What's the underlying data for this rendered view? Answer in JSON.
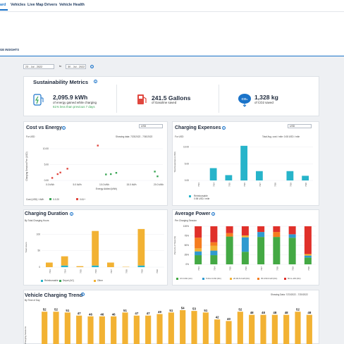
{
  "nav": {
    "items": [
      "ard",
      "Vehicles",
      "Live Map",
      "Drivers",
      "Vehicle Health"
    ]
  },
  "tab": {
    "label": "GE INSIGHTS"
  },
  "date_range": {
    "from": "23 - Jul - 2022",
    "sep": "to",
    "to": "30 - Jul - 2022"
  },
  "sustainability": {
    "title": "Sustainability Metrics",
    "energy_value": "2,095.9 kWh",
    "energy_label": "of energy gained while charging",
    "energy_compare": "61% less than previous 7 days",
    "gas_value": "241.5 Gallons",
    "gas_label": "of Gasoline saved",
    "co2_value": "1,328 kg",
    "co2_label": "of CO2 saved",
    "co2_icon_text": "CO₂"
  },
  "cost_energy": {
    "title": "Cost vs Energy",
    "currency": "USD",
    "for": "For USD",
    "showing": "Showing data: 7/23/2022 - 7/30/2022",
    "legend_title": "Cost (USD) / kWh",
    "legend_a": "0-0.20",
    "legend_b": "0.61+"
  },
  "charging_expenses": {
    "title": "Charging Expenses",
    "currency": "USD",
    "for": "For USD",
    "total": "Total Avg. cost / mile: 0.08 USD / mile",
    "legend": "Reimbursable",
    "legend_sub": "0.98 USD / mile"
  },
  "charging_duration": {
    "title": "Charging Duration",
    "subtitle": "By Total Charging Hours",
    "legend": [
      "Reimbursable",
      "Depot (AC)",
      "Other"
    ]
  },
  "average_power": {
    "title": "Average Power",
    "subtitle": "Per Charging Session",
    "legend": [
      "0-5.0 kW (AC)",
      "5.00-2.0 kW (DC)",
      "20.00-5.0 kW (DC)",
      "35.0-50.0 kW (DC)",
      "50.0+ kW (DC)"
    ]
  },
  "vehicle_trend": {
    "title": "Vehicle Charging Trend",
    "subtitle": "By Time of Day",
    "showing": "Showing Data: 7/23/2022 - 7/30/2022"
  },
  "chart_data": [
    {
      "type": "scatter",
      "title": "Cost vs Energy",
      "xlabel": "Energy Added (kWh)",
      "ylabel": "Charging Session Fee (USD)",
      "x_ticks": [
        "0.0 kWh",
        "5.0 kWh",
        "10.0 kWh",
        "15.0 kWh",
        "20.0 kWh"
      ],
      "y_ticks": [
        "0.00",
        "5.00",
        "10.00"
      ],
      "xlim": [
        0,
        20
      ],
      "ylim": [
        0,
        12
      ],
      "series": [
        {
          "name": "0-0.20",
          "color": "#3aa655",
          "x": [
            10.3,
            11.2,
            12.2,
            19.3,
            19.8
          ],
          "y": [
            1.9,
            2.0,
            2.4,
            2.8,
            1.3
          ]
        },
        {
          "name": "0.61+",
          "color": "#e0463e",
          "x": [
            0.4,
            1.4,
            1.9,
            3.2,
            8.8
          ],
          "y": [
            0.8,
            2.0,
            2.5,
            3.7,
            11.0
          ]
        }
      ]
    },
    {
      "type": "bar",
      "title": "Charging Expenses",
      "ylabel": "Total Expenses (USD)",
      "categories": [
        "7/23",
        "7/24",
        "7/25",
        "7/26",
        "7/27",
        "7/28",
        "7/29",
        "7/30"
      ],
      "y_ticks": [
        "0.00",
        "5.00",
        "10.00"
      ],
      "ylim": [
        0,
        11
      ],
      "series": [
        {
          "name": "Reimbursable",
          "color": "#27b4ca",
          "values": [
            0,
            3.7,
            1.6,
            10.4,
            2.8,
            0,
            2.8,
            1.4
          ]
        }
      ]
    },
    {
      "type": "bar",
      "title": "Charging Duration",
      "ylabel": "Total Hours",
      "categories": [
        "7/23",
        "7/24",
        "7/25",
        "7/26",
        "7/27",
        "7/28",
        "7/29",
        "7/30"
      ],
      "y_ticks": [
        "0",
        "50",
        "100"
      ],
      "ylim": [
        0,
        120
      ],
      "series": [
        {
          "name": "Reimbursable",
          "color": "#27b4ca",
          "values": [
            0,
            5,
            0,
            5,
            0,
            0,
            5,
            0
          ]
        },
        {
          "name": "Depot (AC)",
          "color": "#3aa655",
          "values": [
            0,
            0,
            0,
            0,
            0,
            0,
            0,
            0
          ]
        },
        {
          "name": "Other",
          "color": "#f2b233",
          "values": [
            14,
            28,
            3,
            105,
            14,
            1,
            111,
            0
          ]
        }
      ]
    },
    {
      "type": "bar",
      "title": "Average Power",
      "ylabel": "Percent of Total (%)",
      "categories": [
        "7/23",
        "7/24",
        "7/25",
        "7/26",
        "7/27",
        "7/28",
        "7/29",
        "7/30"
      ],
      "y_ticks": [
        "0%",
        "25%",
        "50%",
        "75%",
        "100%"
      ],
      "ylim": [
        0,
        100
      ],
      "series": [
        {
          "name": "0-5.0 kW (AC)",
          "color": "#44a944",
          "values": [
            24,
            24,
            73,
            33,
            72,
            72,
            70,
            18
          ]
        },
        {
          "name": "5.00-2.0 kW (DC)",
          "color": "#2e9ad0",
          "values": [
            10,
            12,
            0,
            38,
            13,
            0,
            9,
            5
          ]
        },
        {
          "name": "20.00-5.0 kW (DC)",
          "color": "#f2b233",
          "values": [
            8,
            13,
            0,
            5,
            0,
            0,
            0,
            4
          ]
        },
        {
          "name": "35.0-50.0 kW (DC)",
          "color": "#f57c1f",
          "values": [
            28,
            9,
            9,
            0,
            0,
            13,
            0,
            0
          ]
        },
        {
          "name": "50.0+ kW (DC)",
          "color": "#e0302a",
          "values": [
            30,
            42,
            18,
            24,
            15,
            15,
            21,
            73
          ]
        }
      ]
    },
    {
      "type": "bar",
      "title": "Vehicle Charging Trend",
      "ylabel": "No. of Charging Sessions",
      "series": [
        {
          "color": "#f2b233",
          "values": [
            52,
            52,
            51,
            47,
            46,
            46,
            46,
            51,
            47,
            47,
            49,
            51,
            54,
            53,
            51,
            42,
            40,
            52,
            48,
            48,
            48,
            48,
            52,
            48
          ]
        }
      ]
    }
  ]
}
